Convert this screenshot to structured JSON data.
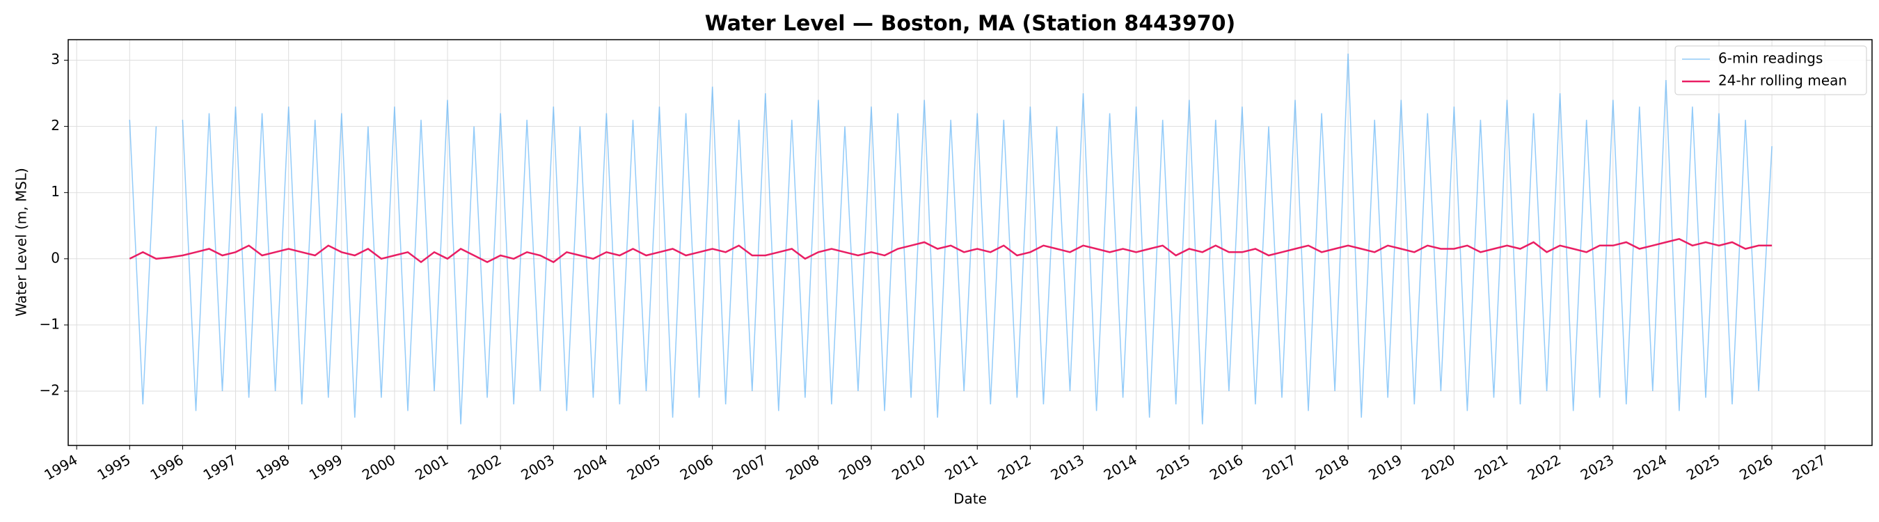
{
  "chart_data": {
    "type": "line",
    "title": "Water Level — Boston, MA (Station 8443970)",
    "xlabel": "Date",
    "ylabel": "Water Level (m, MSL)",
    "x": [
      1995,
      1995.25,
      1995.5,
      1995.75,
      1996,
      1996.25,
      1996.5,
      1996.75,
      1997,
      1997.25,
      1997.5,
      1997.75,
      1998,
      1998.25,
      1998.5,
      1998.75,
      1999,
      1999.25,
      1999.5,
      1999.75,
      2000,
      2000.25,
      2000.5,
      2000.75,
      2001,
      2001.25,
      2001.5,
      2001.75,
      2002,
      2002.25,
      2002.5,
      2002.75,
      2003,
      2003.25,
      2003.5,
      2003.75,
      2004,
      2004.25,
      2004.5,
      2004.75,
      2005,
      2005.25,
      2005.5,
      2005.75,
      2006,
      2006.25,
      2006.5,
      2006.75,
      2007,
      2007.25,
      2007.5,
      2007.75,
      2008,
      2008.25,
      2008.5,
      2008.75,
      2009,
      2009.25,
      2009.5,
      2009.75,
      2010,
      2010.25,
      2010.5,
      2010.75,
      2011,
      2011.25,
      2011.5,
      2011.75,
      2012,
      2012.25,
      2012.5,
      2012.75,
      2013,
      2013.25,
      2013.5,
      2013.75,
      2014,
      2014.25,
      2014.5,
      2014.75,
      2015,
      2015.25,
      2015.5,
      2015.75,
      2016,
      2016.25,
      2016.5,
      2016.75,
      2017,
      2017.25,
      2017.5,
      2017.75,
      2018,
      2018.25,
      2018.5,
      2018.75,
      2019,
      2019.25,
      2019.5,
      2019.75,
      2020,
      2020.25,
      2020.5,
      2020.75,
      2021,
      2021.25,
      2021.5,
      2021.75,
      2022,
      2022.25,
      2022.5,
      2022.75,
      2023,
      2023.25,
      2023.5,
      2023.75,
      2024,
      2024.25,
      2024.5,
      2024.75,
      2025,
      2025.25,
      2025.5,
      2025.75,
      2026
    ],
    "series": [
      {
        "name": "6-min readings",
        "color": "#64b5f6",
        "values": [
          2.1,
          -2.2,
          2.0,
          null,
          2.1,
          -2.3,
          2.2,
          -2.0,
          2.3,
          -2.1,
          2.2,
          -2.0,
          2.3,
          -2.2,
          2.1,
          -2.1,
          2.2,
          -2.4,
          2.0,
          -2.1,
          2.3,
          -2.3,
          2.1,
          -2.0,
          2.4,
          -2.5,
          2.0,
          -2.1,
          2.2,
          -2.2,
          2.1,
          -2.0,
          2.3,
          -2.3,
          2.0,
          -2.1,
          2.2,
          -2.2,
          2.1,
          -2.0,
          2.3,
          -2.4,
          2.2,
          -2.1,
          2.6,
          -2.2,
          2.1,
          -2.0,
          2.5,
          -2.3,
          2.1,
          -2.1,
          2.4,
          -2.2,
          2.0,
          -2.0,
          2.3,
          -2.3,
          2.2,
          -2.1,
          2.4,
          -2.4,
          2.1,
          -2.0,
          2.2,
          -2.2,
          2.1,
          -2.1,
          2.3,
          -2.2,
          2.0,
          -2.0,
          2.5,
          -2.3,
          2.2,
          -2.1,
          2.3,
          -2.4,
          2.1,
          -2.2,
          2.4,
          -2.5,
          2.1,
          -2.0,
          2.3,
          -2.2,
          2.0,
          -2.1,
          2.4,
          -2.3,
          2.2,
          -2.0,
          3.1,
          -2.4,
          2.1,
          -2.1,
          2.4,
          -2.2,
          2.2,
          -2.0,
          2.3,
          -2.3,
          2.1,
          -2.1,
          2.4,
          -2.2,
          2.2,
          -2.0,
          2.5,
          -2.3,
          2.1,
          -2.1,
          2.4,
          -2.2,
          2.3,
          -2.0,
          2.7,
          -2.3,
          2.3,
          -2.1,
          2.2,
          -2.2,
          2.1,
          -2.0,
          1.7
        ]
      },
      {
        "name": "24-hr rolling mean",
        "color": "#e91e63",
        "values": [
          0.0,
          0.1,
          0.0,
          0.02,
          0.05,
          0.1,
          0.15,
          0.05,
          0.1,
          0.2,
          0.05,
          0.1,
          0.15,
          0.1,
          0.05,
          0.2,
          0.1,
          0.05,
          0.15,
          0.0,
          0.05,
          0.1,
          -0.05,
          0.1,
          0.0,
          0.15,
          0.05,
          -0.05,
          0.05,
          0.0,
          0.1,
          0.05,
          -0.05,
          0.1,
          0.05,
          0.0,
          0.1,
          0.05,
          0.15,
          0.05,
          0.1,
          0.15,
          0.05,
          0.1,
          0.15,
          0.1,
          0.2,
          0.05,
          0.05,
          0.1,
          0.15,
          0.0,
          0.1,
          0.15,
          0.1,
          0.05,
          0.1,
          0.05,
          0.15,
          0.2,
          0.25,
          0.15,
          0.2,
          0.1,
          0.15,
          0.1,
          0.2,
          0.05,
          0.1,
          0.2,
          0.15,
          0.1,
          0.2,
          0.15,
          0.1,
          0.15,
          0.1,
          0.15,
          0.2,
          0.05,
          0.15,
          0.1,
          0.2,
          0.1,
          0.1,
          0.15,
          0.05,
          0.1,
          0.15,
          0.2,
          0.1,
          0.15,
          0.2,
          0.15,
          0.1,
          0.2,
          0.15,
          0.1,
          0.2,
          0.15,
          0.15,
          0.2,
          0.1,
          0.15,
          0.2,
          0.15,
          0.25,
          0.1,
          0.2,
          0.15,
          0.1,
          0.2,
          0.2,
          0.25,
          0.15,
          0.2,
          0.25,
          0.3,
          0.2,
          0.25,
          0.2,
          0.25,
          0.15,
          0.2,
          0.2
        ]
      }
    ],
    "xlim": [
      1993.84,
      2027.89
    ],
    "xticks": [
      1994,
      1995,
      1996,
      1997,
      1998,
      1999,
      2000,
      2001,
      2002,
      2003,
      2004,
      2005,
      2006,
      2007,
      2008,
      2009,
      2010,
      2011,
      2012,
      2013,
      2014,
      2015,
      2016,
      2017,
      2018,
      2019,
      2020,
      2021,
      2022,
      2023,
      2024,
      2025,
      2026,
      2027
    ],
    "ylim": [
      -2.82,
      3.31
    ],
    "yticks": [
      {
        "value": -2,
        "label": "−2"
      },
      {
        "value": -1,
        "label": "−1"
      },
      0,
      1,
      2,
      3
    ],
    "grid": true,
    "legend": "upper right"
  }
}
